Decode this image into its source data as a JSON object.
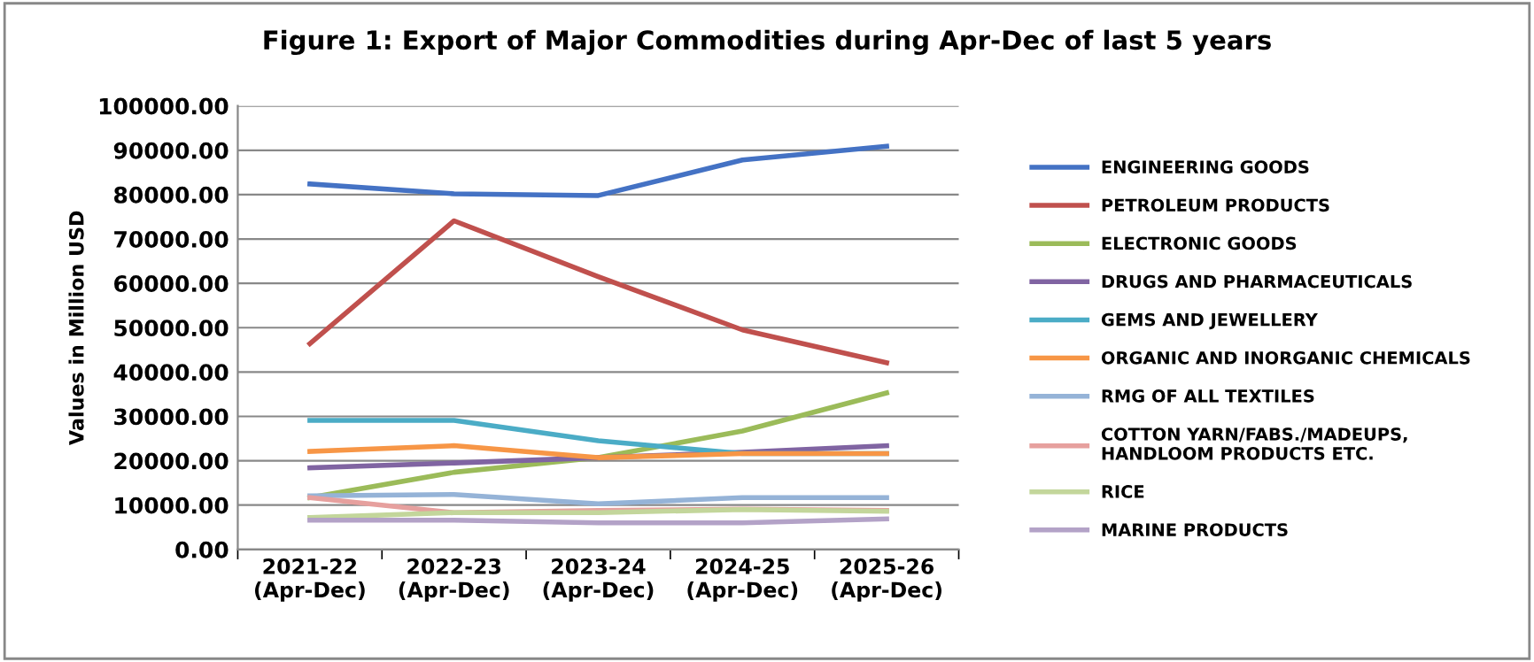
{
  "chart_data": {
    "type": "line",
    "title": "Figure 1: Export of Major Commodities during Apr-Dec of last 5 years",
    "ylabel": "Values in Million USD",
    "categories": [
      "2021-22\n(Apr-Dec)",
      "2022-23\n(Apr-Dec)",
      "2023-24\n(Apr-Dec)",
      "2024-25\n(Apr-Dec)",
      "2025-26\n(Apr-Dec)"
    ],
    "series": [
      {
        "name": "ENGINEERING GOODS",
        "color": "#4472c4",
        "values": [
          82400,
          80200,
          79800,
          87800,
          90900
        ]
      },
      {
        "name": "PETROLEUM PRODUCTS",
        "color": "#c0504d",
        "values": [
          46400,
          74100,
          61500,
          49500,
          42100
        ]
      },
      {
        "name": "ELECTRONIC GOODS",
        "color": "#9bbb59",
        "values": [
          11700,
          17400,
          20700,
          26700,
          35300
        ]
      },
      {
        "name": "DRUGS AND PHARMACEUTICALS",
        "color": "#8064a2",
        "values": [
          18400,
          19500,
          20700,
          21900,
          23400
        ]
      },
      {
        "name": "GEMS AND JEWELLERY",
        "color": "#4bacc6",
        "values": [
          29100,
          29100,
          24500,
          21600,
          21600
        ]
      },
      {
        "name": "ORGANIC AND INORGANIC CHEMICALS",
        "color": "#f79646",
        "values": [
          22100,
          23400,
          20700,
          21600,
          21600
        ]
      },
      {
        "name": "RMG OF ALL TEXTILES",
        "color": "#95b3d7",
        "values": [
          12100,
          12400,
          10300,
          11700,
          11700
        ]
      },
      {
        "name": "COTTON YARN/FABS./MADEUPS,\nHANDLOOM PRODUCTS ETC.",
        "color": "#e6a09e",
        "values": [
          11700,
          8300,
          8800,
          9100,
          8800
        ]
      },
      {
        "name": "RICE",
        "color": "#c3d69b",
        "values": [
          7200,
          8300,
          8300,
          9000,
          8600
        ]
      },
      {
        "name": "MARINE PRODUCTS",
        "color": "#b3a2c7",
        "values": [
          6600,
          6600,
          6000,
          6000,
          6900
        ]
      }
    ],
    "ylim": [
      0,
      100000
    ],
    "yticks": [
      {
        "value": 0,
        "label": "0.00"
      },
      {
        "value": 10000,
        "label": "10000.00"
      },
      {
        "value": 20000,
        "label": "20000.00"
      },
      {
        "value": 30000,
        "label": "30000.00"
      },
      {
        "value": 40000,
        "label": "40000.00"
      },
      {
        "value": 50000,
        "label": "50000.00"
      },
      {
        "value": 60000,
        "label": "60000.00"
      },
      {
        "value": 70000,
        "label": "70000.00"
      },
      {
        "value": 80000,
        "label": "80000.00"
      },
      {
        "value": 90000,
        "label": "90000.00"
      },
      {
        "value": 100000,
        "label": "100000.00"
      }
    ],
    "grid": "y",
    "legend": "right",
    "marker": "none",
    "line_style": "solid"
  }
}
